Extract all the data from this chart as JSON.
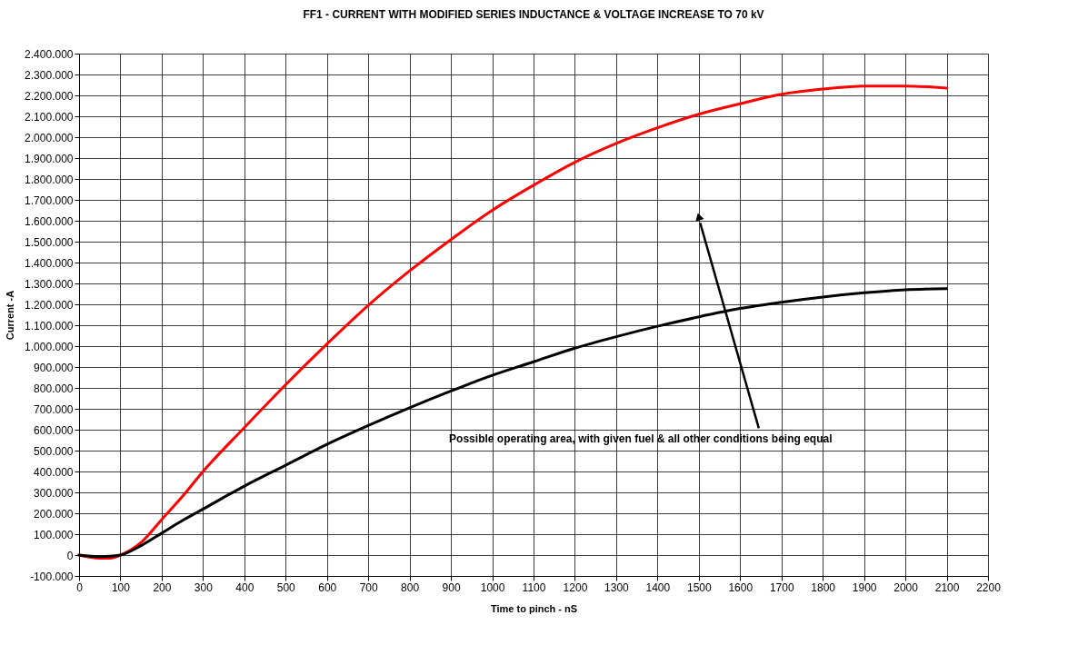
{
  "chart_data": {
    "type": "line",
    "title": "FF1 - CURRENT WITH MODIFIED SERIES INDUCTANCE & VOLTAGE INCREASE TO 70 kV",
    "xlabel": "Time to pinch - nS",
    "ylabel": "Current -A",
    "x": [
      0,
      50,
      75,
      100,
      150,
      200,
      250,
      300,
      400,
      500,
      600,
      700,
      800,
      900,
      1000,
      1100,
      1200,
      1300,
      1400,
      1500,
      1600,
      1700,
      1800,
      1900,
      2000,
      2100
    ],
    "series": [
      {
        "color": "#ff0000",
        "values": [
          0,
          -15000,
          -15000,
          0,
          60000,
          170000,
          280000,
          400000,
          610000,
          815000,
          1010000,
          1195000,
          1360000,
          1510000,
          1650000,
          1770000,
          1880000,
          1970000,
          2045000,
          2110000,
          2160000,
          2205000,
          2230000,
          2245000,
          2245000,
          2235000
        ]
      },
      {
        "color": "#000000",
        "values": [
          0,
          -8000,
          -5000,
          0,
          45000,
          105000,
          165000,
          220000,
          330000,
          430000,
          530000,
          620000,
          705000,
          785000,
          860000,
          925000,
          990000,
          1045000,
          1095000,
          1140000,
          1180000,
          1210000,
          1235000,
          1255000,
          1270000,
          1275000
        ]
      }
    ],
    "xlim": [
      0,
      2200
    ],
    "xticks": [
      0,
      100,
      200,
      300,
      400,
      500,
      600,
      700,
      800,
      900,
      1000,
      1100,
      1200,
      1300,
      1400,
      1500,
      1600,
      1700,
      1800,
      1900,
      2000,
      2100,
      2200
    ],
    "ylim": [
      -100000,
      2400000
    ],
    "yticks": [
      {
        "value": -100000,
        "label": "-100.000"
      },
      {
        "value": 0,
        "label": "0"
      },
      {
        "value": 100000,
        "label": "100.000"
      },
      {
        "value": 200000,
        "label": "200.000"
      },
      {
        "value": 300000,
        "label": "300.000"
      },
      {
        "value": 400000,
        "label": "400.000"
      },
      {
        "value": 500000,
        "label": "500.000"
      },
      {
        "value": 600000,
        "label": "600.000"
      },
      {
        "value": 700000,
        "label": "700.000"
      },
      {
        "value": 800000,
        "label": "800.000"
      },
      {
        "value": 900000,
        "label": "900.000"
      },
      {
        "value": 1000000,
        "label": "1.000.000"
      },
      {
        "value": 1100000,
        "label": "1.100.000"
      },
      {
        "value": 1200000,
        "label": "1.200.000"
      },
      {
        "value": 1300000,
        "label": "1.300.000"
      },
      {
        "value": 1400000,
        "label": "1.400.000"
      },
      {
        "value": 1500000,
        "label": "1.500.000"
      },
      {
        "value": 1600000,
        "label": "1.600.000"
      },
      {
        "value": 1700000,
        "label": "1.700.000"
      },
      {
        "value": 1800000,
        "label": "1.800.000"
      },
      {
        "value": 1900000,
        "label": "1.900.000"
      },
      {
        "value": 2000000,
        "label": "2.000.000"
      },
      {
        "value": 2100000,
        "label": "2.100.000"
      },
      {
        "value": 2200000,
        "label": "2.200.000"
      },
      {
        "value": 2300000,
        "label": "2.300.000"
      },
      {
        "value": 2400000,
        "label": "2.400.000"
      }
    ],
    "grid": true,
    "marker": "none",
    "line_style": "solid",
    "annotations": [
      {
        "text": "Possible operating area, with given fuel & all other conditions being equal",
        "x": 1500,
        "y": 1620000
      }
    ]
  }
}
